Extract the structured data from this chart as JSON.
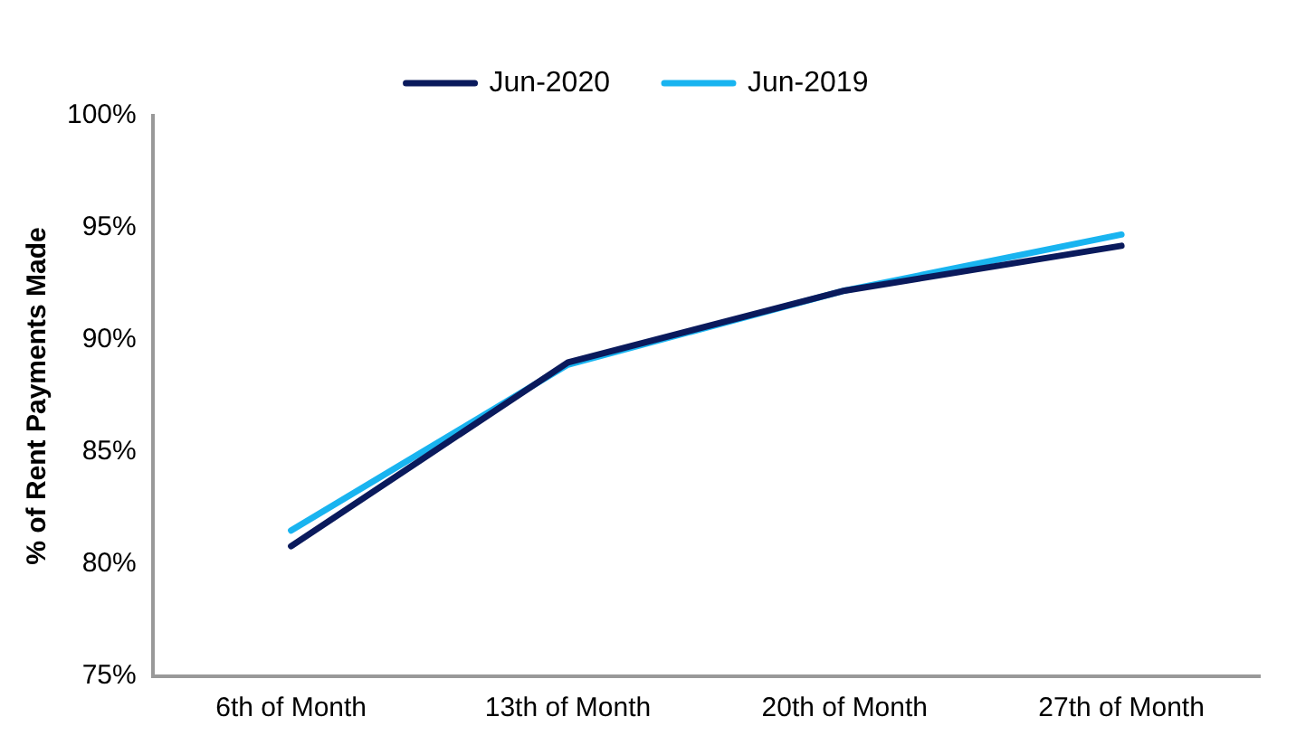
{
  "chart_data": {
    "type": "line",
    "ylabel": "% of Rent Payments Made",
    "categories": [
      "6th of Month",
      "13th of Month",
      "20th of Month",
      "27th of Month"
    ],
    "series": [
      {
        "name": "Jun-2020",
        "color": "#0a1a5c",
        "values": [
          80.8,
          89.0,
          92.2,
          94.2
        ]
      },
      {
        "name": "Jun-2019",
        "color": "#19b4f0",
        "values": [
          81.5,
          88.9,
          92.2,
          94.7
        ]
      }
    ],
    "ylim": [
      75,
      100
    ],
    "yticks": [
      {
        "value": 75,
        "label": "75%"
      },
      {
        "value": 80,
        "label": "80%"
      },
      {
        "value": 85,
        "label": "85%"
      },
      {
        "value": 90,
        "label": "90%"
      },
      {
        "value": 95,
        "label": "95%"
      },
      {
        "value": 100,
        "label": "100%"
      }
    ],
    "grid": false,
    "legend": "top",
    "marker": "none",
    "line_style": "solid"
  }
}
